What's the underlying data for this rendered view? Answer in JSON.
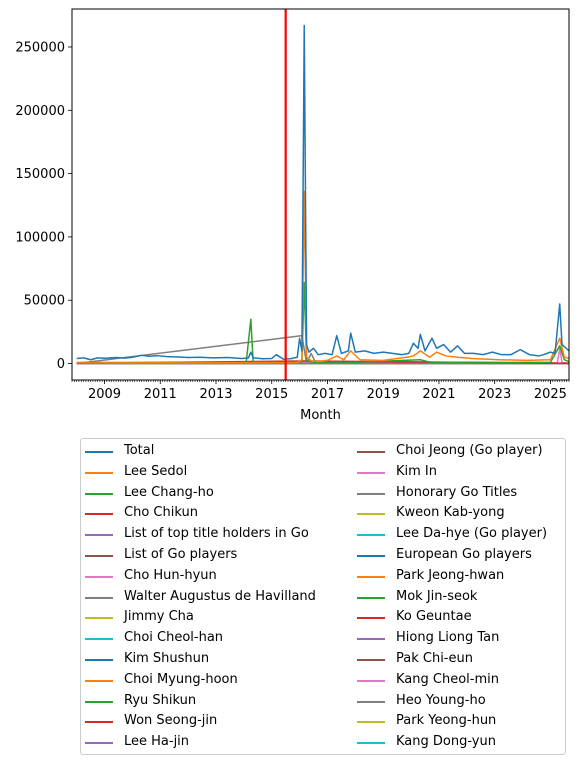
{
  "chart_data": {
    "type": "line",
    "title": "",
    "xlabel": "Month",
    "ylabel": "",
    "xlim": [
      "2007-11",
      "2025-09"
    ],
    "ylim": [
      -13000,
      280000
    ],
    "x_ticks": [
      "2009",
      "2011",
      "2013",
      "2015",
      "2017",
      "2019",
      "2021",
      "2023",
      "2025"
    ],
    "y_ticks": [
      0,
      50000,
      100000,
      150000,
      200000,
      250000
    ],
    "y_tick_labels": [
      "0",
      "50000",
      "100000",
      "150000",
      "200000",
      "250000"
    ],
    "vertical_marker": {
      "x": "2015-07",
      "color": "#ff0000"
    },
    "grid": false,
    "legend_position": "below",
    "series": [
      {
        "name": "Total",
        "color": "#1f77b4",
        "points": [
          [
            "2008-01",
            4000
          ],
          [
            "2008-04",
            4500
          ],
          [
            "2008-07",
            3000
          ],
          [
            "2008-10",
            4500
          ],
          [
            "2009-01",
            4200
          ],
          [
            "2009-06",
            4800
          ],
          [
            "2009-10",
            4300
          ],
          [
            "2010-01",
            5000
          ],
          [
            "2010-05",
            6500
          ],
          [
            "2010-08",
            5800
          ],
          [
            "2010-12",
            6200
          ],
          [
            "2011-04",
            5500
          ],
          [
            "2011-09",
            5200
          ],
          [
            "2012-01",
            4800
          ],
          [
            "2012-06",
            5000
          ],
          [
            "2012-12",
            4500
          ],
          [
            "2013-06",
            4800
          ],
          [
            "2013-12",
            4000
          ],
          [
            "2014-03",
            4500
          ],
          [
            "2014-04",
            9000
          ],
          [
            "2014-05",
            4500
          ],
          [
            "2014-09",
            3800
          ],
          [
            "2015-01",
            4000
          ],
          [
            "2015-03",
            7000
          ],
          [
            "2015-06",
            3500
          ],
          [
            "2015-09",
            3800
          ],
          [
            "2015-12",
            5000
          ],
          [
            "2016-01",
            20000
          ],
          [
            "2016-02",
            10000
          ],
          [
            "2016-03",
            267000
          ],
          [
            "2016-04",
            15000
          ],
          [
            "2016-05",
            9000
          ],
          [
            "2016-07",
            12000
          ],
          [
            "2016-09",
            7000
          ],
          [
            "2016-12",
            8000
          ],
          [
            "2017-03",
            7000
          ],
          [
            "2017-05",
            22000
          ],
          [
            "2017-07",
            8000
          ],
          [
            "2017-10",
            10000
          ],
          [
            "2017-11",
            24000
          ],
          [
            "2018-01",
            9000
          ],
          [
            "2018-05",
            10000
          ],
          [
            "2018-09",
            8000
          ],
          [
            "2019-01",
            9000
          ],
          [
            "2019-05",
            8000
          ],
          [
            "2019-09",
            7000
          ],
          [
            "2019-12",
            8000
          ],
          [
            "2020-02",
            16000
          ],
          [
            "2020-04",
            12000
          ],
          [
            "2020-05",
            23000
          ],
          [
            "2020-07",
            10000
          ],
          [
            "2020-10",
            20000
          ],
          [
            "2020-12",
            12000
          ],
          [
            "2021-03",
            15000
          ],
          [
            "2021-06",
            9000
          ],
          [
            "2021-09",
            14000
          ],
          [
            "2021-12",
            8000
          ],
          [
            "2022-04",
            8000
          ],
          [
            "2022-08",
            7000
          ],
          [
            "2022-12",
            9000
          ],
          [
            "2023-04",
            7000
          ],
          [
            "2023-08",
            7000
          ],
          [
            "2023-12",
            11000
          ],
          [
            "2024-04",
            7000
          ],
          [
            "2024-08",
            6000
          ],
          [
            "2024-10",
            7000
          ],
          [
            "2025-01",
            9000
          ],
          [
            "2025-03",
            8000
          ],
          [
            "2025-05",
            47000
          ],
          [
            "2025-06",
            15000
          ],
          [
            "2025-09",
            10000
          ]
        ]
      },
      {
        "name": "Lee Sedol",
        "color": "#ff7f0e",
        "points": [
          [
            "2008-01",
            500
          ],
          [
            "2012-01",
            500
          ],
          [
            "2015-12",
            800
          ],
          [
            "2016-02",
            3000
          ],
          [
            "2016-03",
            136000
          ],
          [
            "2016-04",
            5000
          ],
          [
            "2016-06",
            2000
          ],
          [
            "2016-09",
            1500
          ],
          [
            "2017-01",
            2500
          ],
          [
            "2017-05",
            6000
          ],
          [
            "2017-08",
            3000
          ],
          [
            "2017-11",
            10000
          ],
          [
            "2018-03",
            3000
          ],
          [
            "2019-01",
            2500
          ],
          [
            "2019-11",
            5000
          ],
          [
            "2020-02",
            6000
          ],
          [
            "2020-05",
            10000
          ],
          [
            "2020-09",
            5000
          ],
          [
            "2020-12",
            9000
          ],
          [
            "2021-04",
            6000
          ],
          [
            "2021-09",
            5000
          ],
          [
            "2022-03",
            4000
          ],
          [
            "2023-03",
            3000
          ],
          [
            "2024-03",
            2500
          ],
          [
            "2025-01",
            3000
          ],
          [
            "2025-05",
            20000
          ],
          [
            "2025-07",
            5000
          ],
          [
            "2025-09",
            4000
          ]
        ]
      },
      {
        "name": "Lee Chang-ho",
        "color": "#2ca02c",
        "points": [
          [
            "2008-01",
            800
          ],
          [
            "2012-01",
            800
          ],
          [
            "2014-02",
            800
          ],
          [
            "2014-04",
            35000
          ],
          [
            "2014-05",
            1000
          ],
          [
            "2015-06",
            800
          ],
          [
            "2016-02",
            1500
          ],
          [
            "2016-03",
            64000
          ],
          [
            "2016-04",
            2000
          ],
          [
            "2016-08",
            1000
          ],
          [
            "2018-01",
            1000
          ],
          [
            "2020-05",
            3000
          ],
          [
            "2020-09",
            1000
          ],
          [
            "2023-01",
            800
          ],
          [
            "2025-01",
            1000
          ],
          [
            "2025-05",
            14000
          ],
          [
            "2025-07",
            3000
          ],
          [
            "2025-09",
            1500
          ]
        ]
      },
      {
        "name": "Cho Chikun",
        "color": "#d62728",
        "points": [
          [
            "2008-01",
            200
          ],
          [
            "2016-03",
            2000
          ],
          [
            "2025-09",
            200
          ]
        ]
      },
      {
        "name": "List of top title holders in Go",
        "color": "#9467bd",
        "points": [
          [
            "2008-01",
            100
          ],
          [
            "2025-09",
            100
          ]
        ]
      },
      {
        "name": "List of Go players",
        "color": "#8c564b",
        "points": [
          [
            "2008-01",
            150
          ],
          [
            "2025-09",
            150
          ]
        ]
      },
      {
        "name": "Cho Hun-hyun",
        "color": "#e377c2",
        "points": [
          [
            "2008-01",
            100
          ],
          [
            "2016-03",
            1500
          ],
          [
            "2025-04",
            500
          ],
          [
            "2025-05",
            12000
          ],
          [
            "2025-06",
            800
          ],
          [
            "2025-09",
            300
          ]
        ]
      },
      {
        "name": "Walter Augustus de Havilland",
        "color": "#7f7f7f",
        "points": [
          [
            "2008-01",
            50
          ],
          [
            "2016-02",
            22000
          ],
          [
            "2016-04",
            200
          ],
          [
            "2016-06",
            8000
          ],
          [
            "2016-08",
            300
          ],
          [
            "2025-09",
            50
          ]
        ]
      },
      {
        "name": "Jimmy Cha",
        "color": "#bcbd22",
        "points": [
          [
            "2008-01",
            50
          ],
          [
            "2025-09",
            50
          ]
        ]
      },
      {
        "name": "Choi Cheol-han",
        "color": "#17becf",
        "points": [
          [
            "2008-01",
            50
          ],
          [
            "2025-09",
            50
          ]
        ]
      },
      {
        "name": "Kim Shushun",
        "color": "#1f77b4",
        "points": [
          [
            "2008-01",
            30
          ],
          [
            "2025-09",
            30
          ]
        ]
      },
      {
        "name": "Choi Myung-hoon",
        "color": "#ff7f0e",
        "points": [
          [
            "2008-01",
            30
          ],
          [
            "2025-09",
            30
          ]
        ]
      },
      {
        "name": "Ryu Shikun",
        "color": "#2ca02c",
        "points": [
          [
            "2008-01",
            30
          ],
          [
            "2025-09",
            30
          ]
        ]
      },
      {
        "name": "Won Seong-jin",
        "color": "#d62728",
        "points": [
          [
            "2008-01",
            30
          ],
          [
            "2025-09",
            30
          ]
        ]
      },
      {
        "name": "Lee Ha-jin",
        "color": "#9467bd",
        "points": [
          [
            "2008-01",
            30
          ],
          [
            "2025-09",
            30
          ]
        ]
      },
      {
        "name": "Choi Jeong (Go player)",
        "color": "#8c564b",
        "points": [
          [
            "2008-01",
            30
          ],
          [
            "2025-09",
            30
          ]
        ]
      },
      {
        "name": "Kim In",
        "color": "#e377c2",
        "points": [
          [
            "2008-01",
            30
          ],
          [
            "2025-09",
            30
          ]
        ]
      },
      {
        "name": "Honorary Go Titles",
        "color": "#7f7f7f",
        "points": [
          [
            "2008-01",
            30
          ],
          [
            "2025-09",
            30
          ]
        ]
      },
      {
        "name": "Kweon Kab-yong",
        "color": "#bcbd22",
        "points": [
          [
            "2008-01",
            30
          ],
          [
            "2025-09",
            30
          ]
        ]
      },
      {
        "name": "Lee Da-hye (Go player)",
        "color": "#17becf",
        "points": [
          [
            "2008-01",
            30
          ],
          [
            "2025-09",
            30
          ]
        ]
      },
      {
        "name": "European Go players",
        "color": "#1f77b4",
        "points": [
          [
            "2008-01",
            30
          ],
          [
            "2025-09",
            30
          ]
        ]
      },
      {
        "name": "Park Jeong-hwan",
        "color": "#ff7f0e",
        "points": [
          [
            "2008-01",
            30
          ],
          [
            "2025-09",
            30
          ]
        ]
      },
      {
        "name": "Mok Jin-seok",
        "color": "#2ca02c",
        "points": [
          [
            "2008-01",
            30
          ],
          [
            "2025-09",
            30
          ]
        ]
      },
      {
        "name": "Ko Geuntae",
        "color": "#d62728",
        "points": [
          [
            "2008-01",
            30
          ],
          [
            "2025-09",
            30
          ]
        ]
      },
      {
        "name": "Hiong Liong Tan",
        "color": "#9467bd",
        "points": [
          [
            "2008-01",
            30
          ],
          [
            "2025-09",
            30
          ]
        ]
      },
      {
        "name": "Pak Chi-eun",
        "color": "#8c564b",
        "points": [
          [
            "2008-01",
            30
          ],
          [
            "2025-09",
            30
          ]
        ]
      },
      {
        "name": "Kang Cheol-min",
        "color": "#e377c2",
        "points": [
          [
            "2008-01",
            30
          ],
          [
            "2025-09",
            30
          ]
        ]
      },
      {
        "name": "Heo Young-ho",
        "color": "#7f7f7f",
        "points": [
          [
            "2008-01",
            30
          ],
          [
            "2025-09",
            30
          ]
        ]
      },
      {
        "name": "Park Yeong-hun",
        "color": "#bcbd22",
        "points": [
          [
            "2008-01",
            30
          ],
          [
            "2025-09",
            30
          ]
        ]
      },
      {
        "name": "Kang Dong-yun",
        "color": "#17becf",
        "points": [
          [
            "2008-01",
            30
          ],
          [
            "2025-09",
            30
          ]
        ]
      }
    ]
  }
}
